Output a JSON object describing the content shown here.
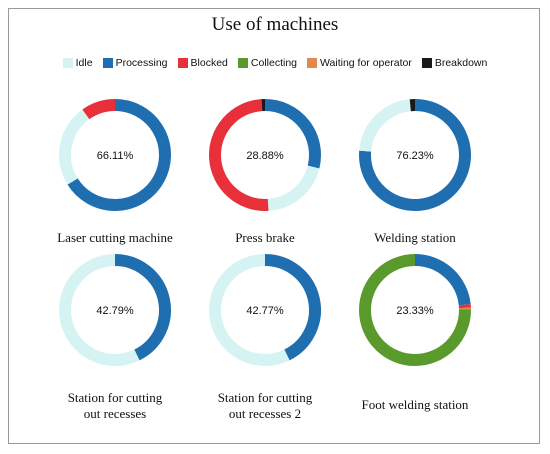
{
  "chart_data": {
    "type": "pie",
    "variant": "donut",
    "title": "Use of machines",
    "legend": [
      {
        "name": "Idle",
        "color": "#d6f3f4"
      },
      {
        "name": "Processing",
        "color": "#1f6eb0"
      },
      {
        "name": "Blocked",
        "color": "#e8303a"
      },
      {
        "name": "Collecting",
        "color": "#5a9a2c"
      },
      {
        "name": "Waiting for operator",
        "color": "#e08a4e"
      },
      {
        "name": "Breakdown",
        "color": "#1a1a1a"
      }
    ],
    "legend_position": "top",
    "charts": [
      {
        "name": "Laser cutting machine",
        "center_label": "66.11%",
        "slices": [
          {
            "category": "Processing",
            "value": 66.11
          },
          {
            "category": "Idle",
            "value": 24.0
          },
          {
            "category": "Blocked",
            "value": 9.89
          }
        ]
      },
      {
        "name": "Press brake",
        "center_label": "28.88%",
        "slices": [
          {
            "category": "Processing",
            "value": 28.88
          },
          {
            "category": "Idle",
            "value": 20.12
          },
          {
            "category": "Blocked",
            "value": 50.0
          },
          {
            "category": "Breakdown",
            "value": 1.0
          }
        ]
      },
      {
        "name": "Welding station",
        "center_label": "76.23%",
        "slices": [
          {
            "category": "Processing",
            "value": 76.23
          },
          {
            "category": "Idle",
            "value": 22.27
          },
          {
            "category": "Breakdown",
            "value": 1.5
          }
        ]
      },
      {
        "name": "Station for cutting out recesses",
        "center_label": "42.79%",
        "slices": [
          {
            "category": "Processing",
            "value": 42.79
          },
          {
            "category": "Idle",
            "value": 57.21
          }
        ]
      },
      {
        "name": "Station for cutting out recesses 2",
        "center_label": "42.77%",
        "slices": [
          {
            "category": "Processing",
            "value": 42.77
          },
          {
            "category": "Idle",
            "value": 57.23
          }
        ]
      },
      {
        "name": "Foot welding station",
        "center_label": "23.33%",
        "slices": [
          {
            "category": "Processing",
            "value": 23.33
          },
          {
            "category": "Blocked",
            "value": 1.0
          },
          {
            "category": "Waiting for operator",
            "value": 0.5
          },
          {
            "category": "Collecting",
            "value": 75.17
          }
        ]
      }
    ]
  },
  "captions": [
    [
      "Laser cutting machine"
    ],
    [
      "Press brake"
    ],
    [
      "Welding station"
    ],
    [
      "Station for cutting",
      "out recesses"
    ],
    [
      "Station for cutting",
      "out recesses 2"
    ],
    [
      "Foot welding station"
    ]
  ]
}
